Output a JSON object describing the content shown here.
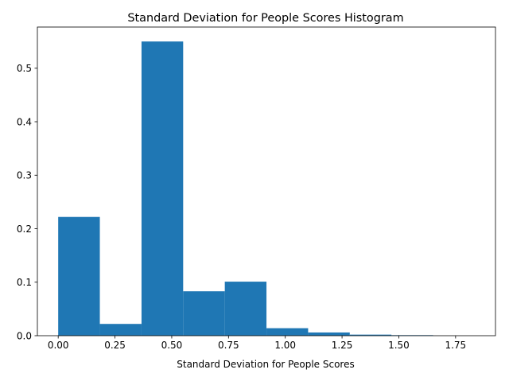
{
  "chart_data": {
    "type": "bar",
    "title": "Standard Deviation for People Scores Histogram",
    "xlabel": "Standard Deviation for People Scores",
    "ylabel": "",
    "xlim": [
      -0.0917,
      1.9257
    ],
    "ylim": [
      0,
      0.577
    ],
    "xticks": [
      0.0,
      0.25,
      0.5,
      0.75,
      1.0,
      1.25,
      1.5,
      1.75
    ],
    "xtick_labels": [
      "0.00",
      "0.25",
      "0.50",
      "0.75",
      "1.00",
      "1.25",
      "1.50",
      "1.75"
    ],
    "yticks": [
      0.0,
      0.1,
      0.2,
      0.3,
      0.4,
      0.5
    ],
    "ytick_labels": [
      "0.0",
      "0.1",
      "0.2",
      "0.3",
      "0.4",
      "0.5"
    ],
    "bin_edges": [
      0.0,
      0.1834,
      0.3669,
      0.5503,
      0.7337,
      0.9172,
      1.1006,
      1.284,
      1.4675,
      1.6509,
      1.8343
    ],
    "values": [
      0.222,
      0.022,
      0.55,
      0.083,
      0.101,
      0.014,
      0.006,
      0.002,
      0.001,
      0.0
    ],
    "bar_color": "#1f77b4",
    "grid": false
  }
}
